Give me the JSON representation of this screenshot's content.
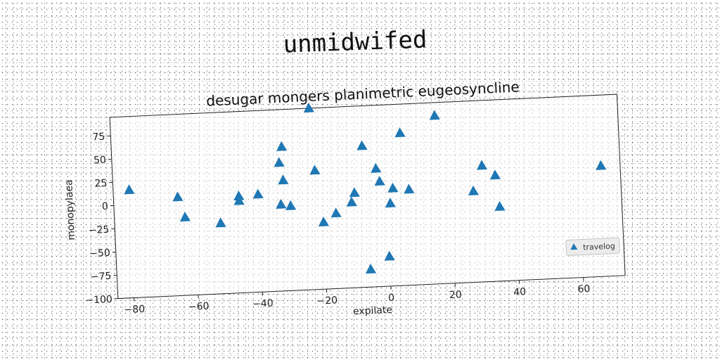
{
  "suptitle": "unmidwifed",
  "chart_data": {
    "type": "scatter",
    "title": "desugar mongers planimetric eugeosyncline",
    "xlabel": "expilate",
    "ylabel": "monopylaea",
    "xlim": [
      -85,
      73
    ],
    "ylim": [
      -100,
      95
    ],
    "xticks": [
      -80,
      -60,
      -40,
      -20,
      0,
      20,
      40,
      60
    ],
    "yticks": [
      -100,
      -75,
      -50,
      -25,
      0,
      25,
      50,
      75
    ],
    "xtick_labels": [
      "−80",
      "−60",
      "−40",
      "−20",
      "0",
      "20",
      "40",
      "60"
    ],
    "ytick_labels": [
      "−100",
      "−75",
      "−50",
      "−25",
      "0",
      "25",
      "50",
      "75"
    ],
    "legend_loc": "lower-right",
    "series": [
      {
        "name": "travelog",
        "color": "#1f77b4",
        "marker": "triangle",
        "points": [
          [
            -80,
            16
          ],
          [
            -65,
            6
          ],
          [
            -63,
            -16
          ],
          [
            -52,
            -24
          ],
          [
            -46,
            4
          ],
          [
            -46,
            -1
          ],
          [
            -40,
            5
          ],
          [
            -33,
            -7
          ],
          [
            -33,
            38
          ],
          [
            -32,
            55
          ],
          [
            -32,
            19
          ],
          [
            -30,
            -9
          ],
          [
            -23,
            95
          ],
          [
            -22,
            28
          ],
          [
            -20,
            -28
          ],
          [
            -16,
            -19
          ],
          [
            -11,
            -8
          ],
          [
            -10,
            2
          ],
          [
            -7,
            52
          ],
          [
            -6,
            -81
          ],
          [
            -3,
            27
          ],
          [
            -2,
            13
          ],
          [
            0,
            -68
          ],
          [
            1,
            -11
          ],
          [
            2,
            5
          ],
          [
            5,
            64
          ],
          [
            7,
            3
          ],
          [
            16,
            81
          ],
          [
            27,
            -2
          ],
          [
            30,
            25
          ],
          [
            34,
            14
          ],
          [
            35,
            -20
          ],
          [
            67,
            19
          ]
        ]
      }
    ]
  }
}
